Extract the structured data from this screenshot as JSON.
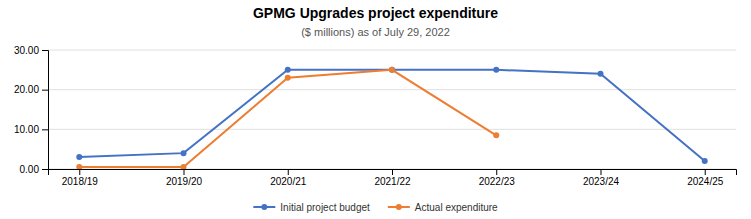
{
  "chart_data": {
    "type": "line",
    "title": "GPMG Upgrades project expenditure",
    "subtitle": "($ millions) as of July 29, 2022",
    "categories": [
      "2018/19",
      "2019/20",
      "2020/21",
      "2021/22",
      "2022/23",
      "2023/24",
      "2024/25"
    ],
    "series": [
      {
        "name": "Initial project budget",
        "color": "#4472C4",
        "marker": "circle",
        "values": [
          3.0,
          4.0,
          25.0,
          25.0,
          25.0,
          24.0,
          2.0
        ]
      },
      {
        "name": "Actual expenditure",
        "color": "#ED7D31",
        "marker": "circle",
        "values": [
          0.5,
          0.5,
          23.0,
          25.0,
          8.5,
          null,
          null
        ]
      }
    ],
    "ylim": [
      0,
      30
    ],
    "yticks": [
      {
        "value": 0,
        "label": "0.00"
      },
      {
        "value": 10,
        "label": "10.00"
      },
      {
        "value": 20,
        "label": "20.00"
      },
      {
        "value": 30,
        "label": "30.00"
      }
    ],
    "grid": true,
    "legend": "bottom"
  }
}
